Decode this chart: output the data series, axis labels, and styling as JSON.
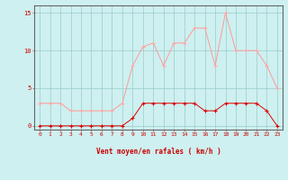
{
  "x": [
    0,
    1,
    2,
    3,
    4,
    5,
    6,
    7,
    8,
    9,
    10,
    11,
    12,
    13,
    14,
    15,
    16,
    17,
    18,
    19,
    20,
    21,
    22,
    23
  ],
  "wind_avg": [
    0,
    0,
    0,
    0,
    0,
    0,
    0,
    0,
    0,
    1,
    3,
    3,
    3,
    3,
    3,
    3,
    2,
    2,
    3,
    3,
    3,
    3,
    2,
    0
  ],
  "wind_gust": [
    3,
    3,
    3,
    2,
    2,
    2,
    2,
    2,
    3,
    8,
    10.5,
    11,
    8,
    11,
    11,
    13,
    13,
    8,
    15,
    10,
    10,
    10,
    8,
    5
  ],
  "background_color": "#cef0f0",
  "grid_color": "#99cccc",
  "line_avg_color": "#dd0000",
  "line_gust_color": "#ff9999",
  "marker_color_avg": "#dd0000",
  "marker_color_gust": "#ffaaaa",
  "ylabel_ticks": [
    0,
    5,
    10,
    15
  ],
  "xlabel": "Vent moyen/en rafales ( km/h )",
  "ylim": [
    -0.5,
    16
  ],
  "xlim": [
    -0.5,
    23.5
  ],
  "title_color": "#cc0000",
  "axis_color": "#666666"
}
